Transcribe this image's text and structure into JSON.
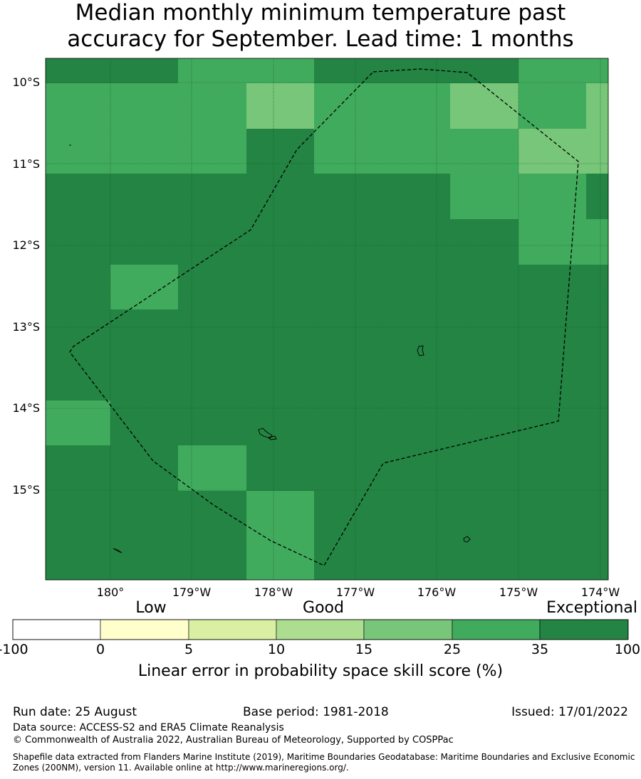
{
  "title": {
    "line1": "Median monthly minimum temperature past",
    "line2": "accuracy for September. Lead time: 1 months"
  },
  "map": {
    "lat_labels": [
      "10°S",
      "11°S",
      "12°S",
      "13°S",
      "14°S",
      "15°S"
    ],
    "lon_labels": [
      "180°",
      "179°W",
      "178°W",
      "177°W",
      "176°W",
      "175°W",
      "174°W"
    ],
    "category_colors": {
      "35-100": "#238443",
      "25-35": "#41ab5d",
      "15-25": "#78c679"
    }
  },
  "colorbar": {
    "words": {
      "low": "Low",
      "good": "Good",
      "exceptional": "Exceptional"
    },
    "ticks": [
      "-100",
      "0",
      "5",
      "10",
      "15",
      "25",
      "35",
      "100"
    ],
    "colors": [
      "#ffffff",
      "#ffffcc",
      "#d9f0a3",
      "#addd8e",
      "#78c679",
      "#41ab5d",
      "#238443"
    ],
    "label": "Linear error in probability space skill score (%)"
  },
  "footer": {
    "run_date": "Run date: 25 August",
    "base_period": "Base period: 1981-2018",
    "issued": "Issued: 17/01/2022",
    "data_source": "Data source: ACCESS-S2 and ERA5 Climate Reanalysis",
    "copyright": "© Commonwealth of Australia 2022, Australian Bureau of Meteorology, Supported by COSPPac",
    "shapefile": "Shapefile data extracted from Flanders Marine Institute (2019), Maritime Boundaries Geodatabase: Maritime Boundaries and Exclusive Economic Zones (200NM), version 11. Available online at http://www.marineregions.org/."
  }
}
